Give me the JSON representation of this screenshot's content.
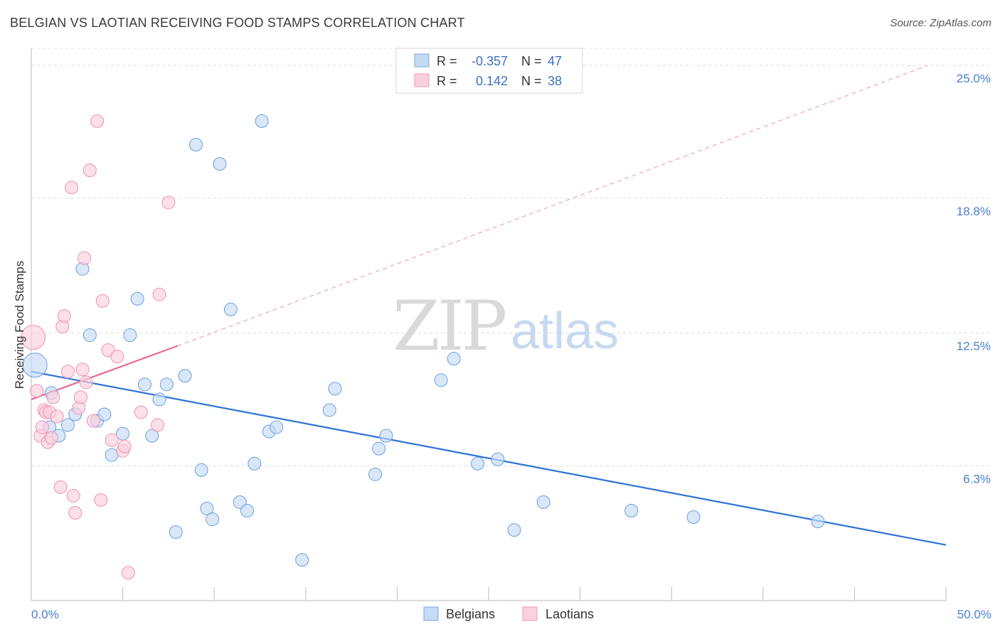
{
  "header": {
    "title": "BELGIAN VS LAOTIAN RECEIVING FOOD STAMPS CORRELATION CHART",
    "source": "Source: ZipAtlas.com"
  },
  "watermark": {
    "zip": "ZIP",
    "atlas": "atlas"
  },
  "legend": {
    "rows": [
      {
        "r_label": "R =",
        "r_value": "-0.357",
        "n_label": "N =",
        "n_value": "47",
        "color": "#a8c8f0"
      },
      {
        "r_label": "R =",
        "r_value": "0.142",
        "n_label": "N =",
        "n_value": "38",
        "color": "#f6b6c8"
      }
    ]
  },
  "bottom_legend": {
    "items": [
      {
        "label": "Belgians",
        "color": "#a8c8f0"
      },
      {
        "label": "Laotians",
        "color": "#f6b6c8"
      }
    ]
  },
  "chart_data": {
    "type": "scatter",
    "title": "BELGIAN VS LAOTIAN RECEIVING FOOD STAMPS CORRELATION CHART",
    "xlabel": "",
    "ylabel": "Receiving Food Stamps",
    "xlim": [
      0,
      50
    ],
    "ylim": [
      0,
      25.8
    ],
    "x_tick_labels": [
      "0.0%",
      "50.0%"
    ],
    "y_ticks": [
      6.3,
      12.5,
      18.8,
      25.0
    ],
    "y_tick_labels": [
      "6.3%",
      "12.5%",
      "18.8%",
      "25.0%"
    ],
    "grid": true,
    "series": [
      {
        "name": "Belgians",
        "color": "#6a9fe0",
        "fill": "#c5daf5",
        "points": [
          [
            0.2,
            11.0
          ],
          [
            1.0,
            8.1
          ],
          [
            1.1,
            9.7
          ],
          [
            1.5,
            7.7
          ],
          [
            2.0,
            8.2
          ],
          [
            2.4,
            8.7
          ],
          [
            2.8,
            15.5
          ],
          [
            3.2,
            12.4
          ],
          [
            3.6,
            8.4
          ],
          [
            4.0,
            8.7
          ],
          [
            4.4,
            6.8
          ],
          [
            5.0,
            7.8
          ],
          [
            5.4,
            12.4
          ],
          [
            5.8,
            14.1
          ],
          [
            6.2,
            10.1
          ],
          [
            6.6,
            7.7
          ],
          [
            7.0,
            9.4
          ],
          [
            7.4,
            10.1
          ],
          [
            7.9,
            3.2
          ],
          [
            8.4,
            10.5
          ],
          [
            9.0,
            21.3
          ],
          [
            9.3,
            6.1
          ],
          [
            9.6,
            4.3
          ],
          [
            9.9,
            3.8
          ],
          [
            10.3,
            20.4
          ],
          [
            10.9,
            13.6
          ],
          [
            11.4,
            4.6
          ],
          [
            11.8,
            4.2
          ],
          [
            12.2,
            6.4
          ],
          [
            12.6,
            22.4
          ],
          [
            13.0,
            7.9
          ],
          [
            13.4,
            8.1
          ],
          [
            14.8,
            1.9
          ],
          [
            16.3,
            8.9
          ],
          [
            16.6,
            9.9
          ],
          [
            18.8,
            5.9
          ],
          [
            19.0,
            7.1
          ],
          [
            19.4,
            7.7
          ],
          [
            22.4,
            10.3
          ],
          [
            23.1,
            11.3
          ],
          [
            24.4,
            6.4
          ],
          [
            25.5,
            6.6
          ],
          [
            26.4,
            3.3
          ],
          [
            28.0,
            4.6
          ],
          [
            32.8,
            4.2
          ],
          [
            36.2,
            3.9
          ],
          [
            43.0,
            3.7
          ]
        ],
        "sizes": [
          34,
          18,
          18,
          18,
          18,
          18,
          18,
          18,
          18,
          18,
          18,
          18,
          18,
          18,
          18,
          18,
          18,
          18,
          18,
          18,
          18,
          18,
          18,
          18,
          18,
          18,
          18,
          18,
          18,
          18,
          18,
          18,
          18,
          18,
          18,
          18,
          18,
          18,
          18,
          18,
          18,
          18,
          18,
          18,
          18,
          18,
          18
        ],
        "trend": {
          "x": [
            0,
            50
          ],
          "y": [
            10.7,
            2.6
          ],
          "dashed_extension": false
        }
      },
      {
        "name": "Laotians",
        "color": "#f090b0",
        "fill": "#fbd0dd",
        "points": [
          [
            0.1,
            12.3
          ],
          [
            0.3,
            9.8
          ],
          [
            0.5,
            7.7
          ],
          [
            0.6,
            8.1
          ],
          [
            0.7,
            8.9
          ],
          [
            0.8,
            8.8
          ],
          [
            0.9,
            7.4
          ],
          [
            1.0,
            8.8
          ],
          [
            1.1,
            7.6
          ],
          [
            1.2,
            9.5
          ],
          [
            1.4,
            8.6
          ],
          [
            1.6,
            5.3
          ],
          [
            1.7,
            12.8
          ],
          [
            1.8,
            13.3
          ],
          [
            2.0,
            10.7
          ],
          [
            2.2,
            19.3
          ],
          [
            2.3,
            4.9
          ],
          [
            2.4,
            4.1
          ],
          [
            2.6,
            9.0
          ],
          [
            2.7,
            9.5
          ],
          [
            2.8,
            10.8
          ],
          [
            2.9,
            16.0
          ],
          [
            3.0,
            10.2
          ],
          [
            3.2,
            20.1
          ],
          [
            3.4,
            8.4
          ],
          [
            3.6,
            22.4
          ],
          [
            3.8,
            4.7
          ],
          [
            3.9,
            14.0
          ],
          [
            4.2,
            11.7
          ],
          [
            4.4,
            7.5
          ],
          [
            4.7,
            11.4
          ],
          [
            5.0,
            7.0
          ],
          [
            5.1,
            7.2
          ],
          [
            5.3,
            1.3
          ],
          [
            6.0,
            8.8
          ],
          [
            6.9,
            8.2
          ],
          [
            7.0,
            14.3
          ],
          [
            7.5,
            18.6
          ]
        ],
        "sizes": [
          34,
          18,
          18,
          18,
          18,
          18,
          18,
          18,
          18,
          18,
          18,
          18,
          18,
          18,
          18,
          18,
          18,
          18,
          18,
          18,
          18,
          18,
          18,
          18,
          18,
          18,
          18,
          18,
          18,
          18,
          18,
          18,
          18,
          18,
          18,
          18,
          18,
          18
        ],
        "trend": {
          "x": [
            0,
            8.0
          ],
          "y": [
            9.4,
            11.9
          ],
          "extension_x": [
            8.0,
            49.0
          ],
          "extension_y": [
            11.9,
            25.0
          ]
        }
      }
    ]
  }
}
